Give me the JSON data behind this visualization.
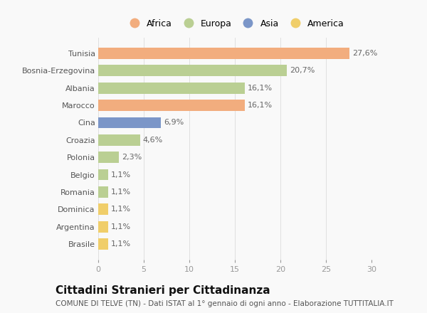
{
  "categories": [
    "Tunisia",
    "Bosnia-Erzegovina",
    "Albania",
    "Marocco",
    "Cina",
    "Croazia",
    "Polonia",
    "Belgio",
    "Romania",
    "Dominica",
    "Argentina",
    "Brasile"
  ],
  "values": [
    27.6,
    20.7,
    16.1,
    16.1,
    6.9,
    4.6,
    2.3,
    1.1,
    1.1,
    1.1,
    1.1,
    1.1
  ],
  "labels": [
    "27,6%",
    "20,7%",
    "16,1%",
    "16,1%",
    "6,9%",
    "4,6%",
    "2,3%",
    "1,1%",
    "1,1%",
    "1,1%",
    "1,1%",
    "1,1%"
  ],
  "colors": [
    "#F2AD7E",
    "#BACF93",
    "#BACF93",
    "#F2AD7E",
    "#7B96C8",
    "#BACF93",
    "#BACF93",
    "#BACF93",
    "#BACF93",
    "#F0CE6A",
    "#F0CE6A",
    "#F0CE6A"
  ],
  "continent_colors": {
    "Africa": "#F2AD7E",
    "Europa": "#BACF93",
    "Asia": "#7B96C8",
    "America": "#F0CE6A"
  },
  "xlim": [
    0,
    30
  ],
  "xticks": [
    0,
    5,
    10,
    15,
    20,
    25,
    30
  ],
  "title": "Cittadini Stranieri per Cittadinanza",
  "subtitle": "COMUNE DI TELVE (TN) - Dati ISTAT al 1° gennaio di ogni anno - Elaborazione TUTTITALIA.IT",
  "background_color": "#f9f9f9",
  "bar_height": 0.65,
  "title_fontsize": 11,
  "subtitle_fontsize": 7.5,
  "label_fontsize": 8,
  "tick_fontsize": 8,
  "legend_fontsize": 9
}
